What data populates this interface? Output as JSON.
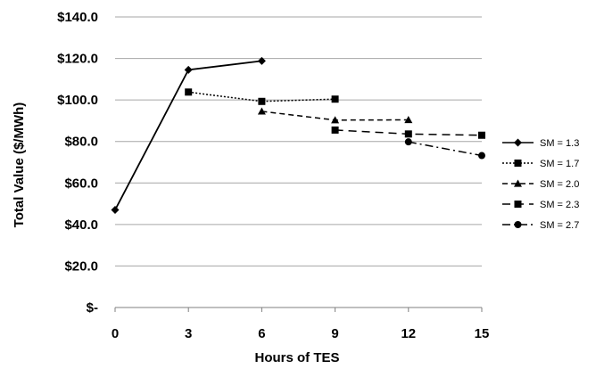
{
  "chart_data": {
    "type": "line",
    "xlabel": "Hours of TES",
    "ylabel": "Total Value ($/MWh)",
    "xticks": [
      "0",
      "3",
      "6",
      "9",
      "12",
      "15"
    ],
    "xlim": [
      0,
      15
    ],
    "yticks": [
      "$-",
      "$20.0",
      "$40.0",
      "$60.0",
      "$80.0",
      "$100.0",
      "$120.0",
      "$140.0"
    ],
    "ylim": [
      0,
      140
    ],
    "grid": "horizontal",
    "legend_position": "right",
    "series": [
      {
        "name": "SM = 1.3",
        "marker": "diamond",
        "dash": "solid",
        "points": [
          [
            0,
            47.0
          ],
          [
            3,
            114.5
          ],
          [
            6,
            118.8
          ]
        ]
      },
      {
        "name": "SM = 1.7",
        "marker": "square",
        "dash": "dotted",
        "points": [
          [
            3,
            103.8
          ],
          [
            6,
            99.3
          ],
          [
            9,
            100.4
          ]
        ]
      },
      {
        "name": "SM = 2.0",
        "marker": "triangle",
        "dash": "dashed",
        "points": [
          [
            6,
            94.5
          ],
          [
            9,
            90.3
          ],
          [
            12,
            90.4
          ]
        ]
      },
      {
        "name": "SM = 2.3",
        "marker": "square",
        "dash": "long-dashed",
        "points": [
          [
            9,
            85.5
          ],
          [
            12,
            83.6
          ],
          [
            15,
            83.0
          ]
        ]
      },
      {
        "name": "SM = 2.7",
        "marker": "circle",
        "dash": "dash-dot",
        "points": [
          [
            12,
            79.8
          ],
          [
            15,
            73.2
          ]
        ]
      }
    ],
    "colors": {
      "line": "#000000",
      "grid": "#a6a6a6"
    }
  }
}
